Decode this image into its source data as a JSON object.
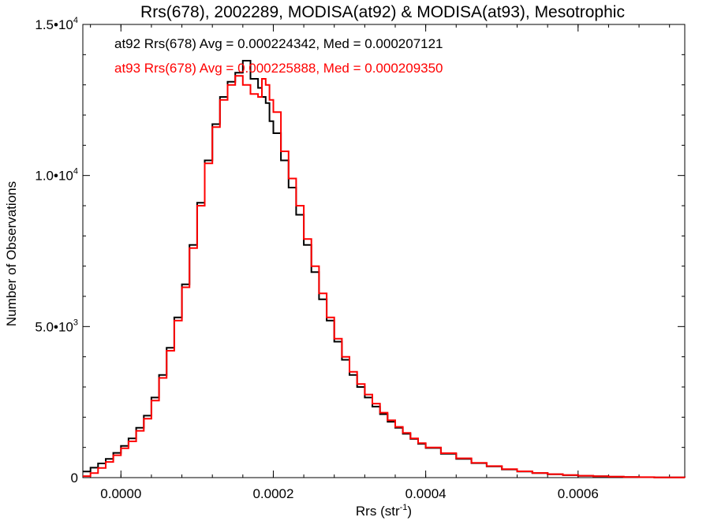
{
  "chart_data": {
    "type": "line",
    "step": true,
    "title": "Rrs(678), 2002289, MODISA(at92) & MODISA(at93), Mesotrophic",
    "xlabel_base": "Rrs (str",
    "xlabel_sup": "-1",
    "xlabel_close": ")",
    "ylabel": "Number of Observations",
    "xlim": [
      -5e-05,
      0.00074
    ],
    "ylim": [
      0,
      15000
    ],
    "x_ticks": [
      {
        "value": 0.0,
        "label": "0.0000"
      },
      {
        "value": 0.0002,
        "label": "0.0002"
      },
      {
        "value": 0.0004,
        "label": "0.0004"
      },
      {
        "value": 0.0006,
        "label": "0.0006"
      }
    ],
    "y_ticks": [
      {
        "value": 0,
        "label": "0",
        "sup": ""
      },
      {
        "value": 5000,
        "label": "5.0•10",
        "sup": "3"
      },
      {
        "value": 10000,
        "label": "1.0•10",
        "sup": "4"
      },
      {
        "value": 15000,
        "label": "1.5•10",
        "sup": "4"
      }
    ],
    "annotations": [
      {
        "text": "at92 Rrs(678) Avg = 0.000224342, Med = 0.000207121",
        "color": "#000000"
      },
      {
        "text": "at93 Rrs(678) Avg = 0.000225888, Med = 0.000209350",
        "color": "#ff0000"
      }
    ],
    "series": [
      {
        "color": "#000000",
        "x": [
          -5e-05,
          -4e-05,
          -3e-05,
          -2e-05,
          -1e-05,
          0.0,
          1e-05,
          2e-05,
          3e-05,
          4e-05,
          5e-05,
          6e-05,
          7e-05,
          8e-05,
          9e-05,
          0.0001,
          0.00011,
          0.00012,
          0.00013,
          0.00014,
          0.00015,
          0.00016,
          0.00017,
          0.00018,
          0.000185,
          0.00019,
          0.000195,
          0.0002,
          0.00021,
          0.00022,
          0.00023,
          0.00024,
          0.00025,
          0.00026,
          0.00027,
          0.00028,
          0.00029,
          0.0003,
          0.00031,
          0.00032,
          0.00033,
          0.00034,
          0.00035,
          0.00036,
          0.00037,
          0.00038,
          0.00039,
          0.0004,
          0.00042,
          0.00044,
          0.00046,
          0.00048,
          0.0005,
          0.00052,
          0.00054,
          0.00056,
          0.00058,
          0.0006,
          0.00062,
          0.00064,
          0.00066,
          0.00068,
          0.0007,
          0.00072,
          0.00074
        ],
        "y": [
          200,
          330,
          470,
          620,
          820,
          1050,
          1300,
          1650,
          2050,
          2650,
          3400,
          4300,
          5300,
          6400,
          7700,
          9100,
          10500,
          11700,
          12600,
          13100,
          13400,
          13800,
          13200,
          12900,
          12600,
          12400,
          11800,
          11400,
          10500,
          9600,
          8700,
          7700,
          6800,
          5900,
          5200,
          4500,
          3900,
          3400,
          3000,
          2650,
          2350,
          2100,
          1850,
          1650,
          1450,
          1280,
          1120,
          980,
          790,
          620,
          480,
          370,
          270,
          200,
          150,
          110,
          80,
          60,
          45,
          30,
          20,
          14,
          8,
          4,
          0
        ]
      },
      {
        "color": "#ff0000",
        "x": [
          -5e-05,
          -4e-05,
          -3e-05,
          -2e-05,
          -1e-05,
          0.0,
          1e-05,
          2e-05,
          3e-05,
          4e-05,
          5e-05,
          6e-05,
          7e-05,
          8e-05,
          9e-05,
          0.0001,
          0.00011,
          0.00012,
          0.00013,
          0.00014,
          0.00015,
          0.00016,
          0.00017,
          0.00018,
          0.000185,
          0.00019,
          0.000195,
          0.0002,
          0.00021,
          0.00022,
          0.00023,
          0.00024,
          0.00025,
          0.00026,
          0.00027,
          0.00028,
          0.00029,
          0.0003,
          0.00031,
          0.00032,
          0.00033,
          0.00034,
          0.00035,
          0.00036,
          0.00037,
          0.00038,
          0.00039,
          0.0004,
          0.00042,
          0.00044,
          0.00046,
          0.00048,
          0.0005,
          0.00052,
          0.00054,
          0.00056,
          0.00058,
          0.0006,
          0.00062,
          0.00064,
          0.00066,
          0.00068,
          0.0007,
          0.00072,
          0.00074
        ],
        "y": [
          50,
          150,
          320,
          520,
          740,
          970,
          1200,
          1550,
          1950,
          2550,
          3300,
          4200,
          5200,
          6300,
          7600,
          9000,
          10400,
          11600,
          12500,
          13000,
          13300,
          13000,
          12700,
          12600,
          13200,
          13000,
          12500,
          12100,
          10800,
          9900,
          9000,
          7900,
          7000,
          6100,
          5300,
          4600,
          4000,
          3500,
          3100,
          2750,
          2450,
          2150,
          1900,
          1680,
          1480,
          1300,
          1140,
          1000,
          810,
          640,
          490,
          380,
          280,
          210,
          155,
          115,
          85,
          62,
          46,
          32,
          22,
          15,
          9,
          5,
          0
        ]
      }
    ]
  }
}
